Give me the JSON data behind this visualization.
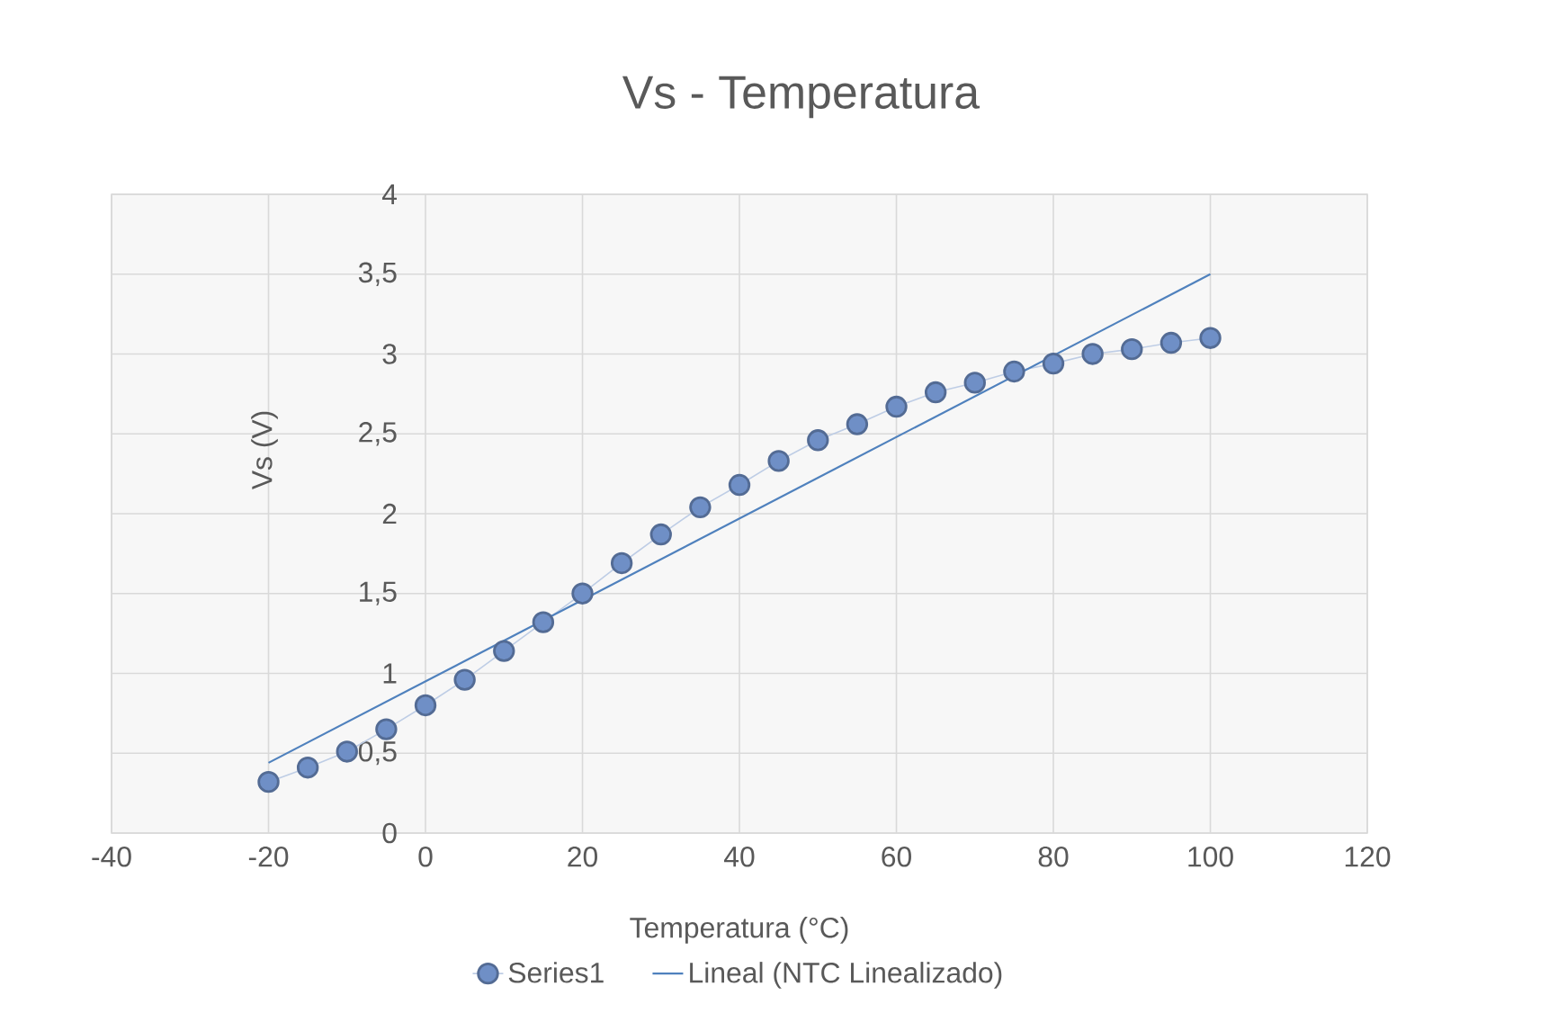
{
  "chart_data": {
    "type": "line",
    "title": "Vs - Temperatura",
    "xlabel": "Temperatura (°C)",
    "ylabel": "Vs (V)",
    "x": [
      -20,
      -15,
      -10,
      -5,
      0,
      5,
      10,
      15,
      20,
      25,
      30,
      35,
      40,
      45,
      50,
      55,
      60,
      65,
      70,
      75,
      80,
      85,
      90,
      95,
      100
    ],
    "series": [
      {
        "name": "Series1",
        "marker": "circle",
        "color": "#6f8fc6",
        "values": [
          0.32,
          0.41,
          0.51,
          0.65,
          0.8,
          0.96,
          1.14,
          1.32,
          1.5,
          1.69,
          1.87,
          2.04,
          2.18,
          2.33,
          2.46,
          2.56,
          2.67,
          2.76,
          2.82,
          2.89,
          2.94,
          3.0,
          3.03,
          3.07,
          3.1
        ]
      },
      {
        "name": "Lineal (NTC Linealizado)",
        "color": "#4f81bd",
        "x": [
          -20,
          100
        ],
        "values": [
          0.44,
          3.5
        ]
      }
    ],
    "xlim": [
      -40,
      120
    ],
    "xticks": [
      -40,
      -20,
      0,
      20,
      40,
      60,
      80,
      100,
      120
    ],
    "ylim": [
      0,
      4
    ],
    "yticks": [
      0,
      {
        "value": 0.5,
        "label": "0,5"
      },
      1,
      {
        "value": 1.5,
        "label": "1,5"
      },
      2,
      {
        "value": 2.5,
        "label": "2,5"
      },
      3,
      {
        "value": 3.5,
        "label": "3,5"
      },
      4
    ],
    "grid": true,
    "legend": "bottom"
  }
}
